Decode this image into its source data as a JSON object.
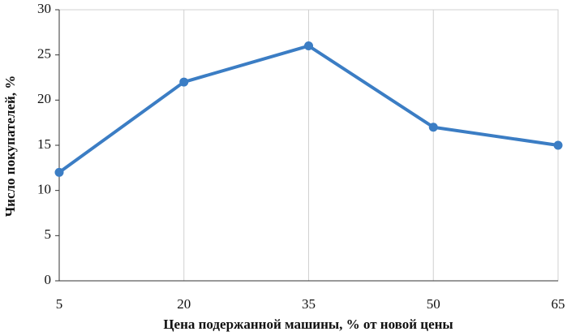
{
  "chart_data": {
    "type": "line",
    "x_label": "Цена подержанной машины, % от новой цены",
    "y_label": "Число покупателей, %",
    "x": [
      5,
      20,
      35,
      50,
      65
    ],
    "series": [
      {
        "color": "#3b7dc4",
        "values": [
          12,
          22,
          26,
          17,
          15
        ]
      }
    ],
    "xlim": [
      5,
      65
    ],
    "xticks": [
      5,
      20,
      35,
      50,
      65
    ],
    "ylim": [
      0,
      30
    ],
    "yticks": [
      0,
      5,
      10,
      15,
      20,
      25,
      30
    ],
    "grid": true
  }
}
